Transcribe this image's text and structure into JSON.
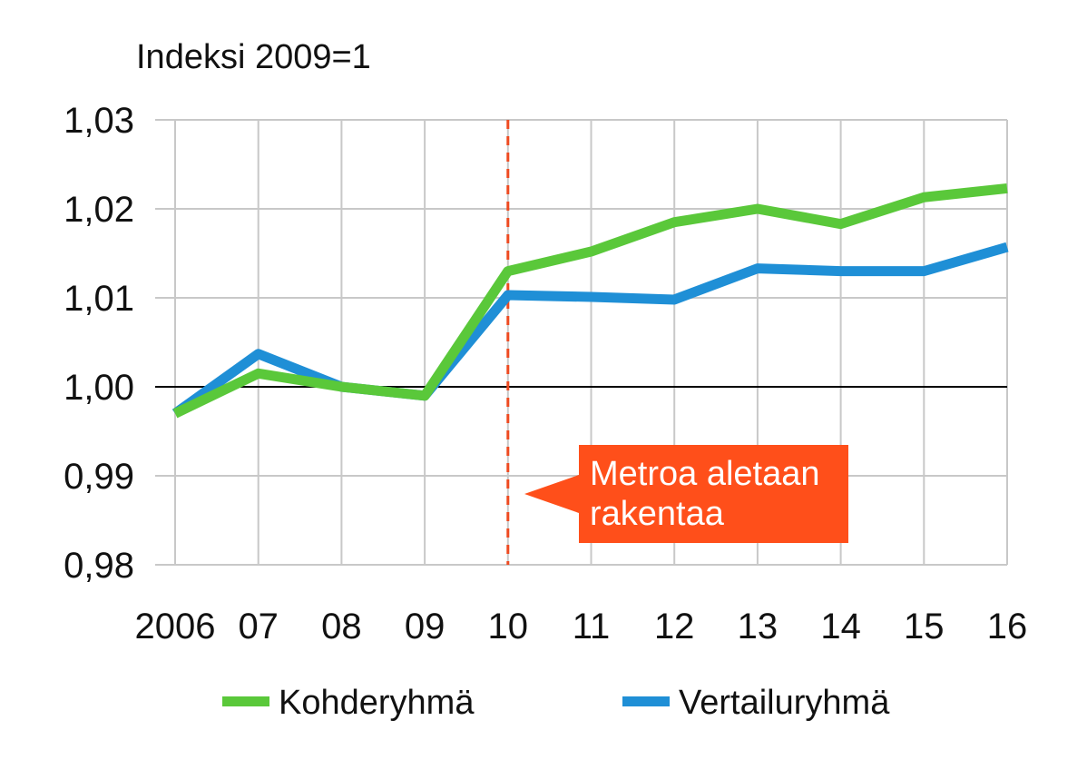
{
  "chart_data": {
    "type": "line",
    "title": "",
    "ylabel": "Indeksi 2009=1",
    "xlabel": "",
    "categories": [
      "2006",
      "07",
      "08",
      "09",
      "10",
      "11",
      "12",
      "13",
      "14",
      "15",
      "16"
    ],
    "ylim": [
      0.98,
      1.03
    ],
    "yticks": [
      0.98,
      0.99,
      1.0,
      1.01,
      1.02,
      1.03
    ],
    "ytick_labels": [
      "0,98",
      "0,99",
      "1,00",
      "1,01",
      "1,02",
      "1,03"
    ],
    "reference_line": 1.0,
    "grid": true,
    "series": [
      {
        "name": "Kohderyhmä",
        "color": "#5ac83a",
        "values": [
          0.997,
          1.0015,
          1.0,
          0.999,
          1.013,
          1.0152,
          1.0185,
          1.02,
          1.0183,
          1.0213,
          1.0223
        ]
      },
      {
        "name": "Vertailuryhmä",
        "color": "#1f8fd6",
        "values": [
          0.997,
          1.0037,
          1.0,
          0.999,
          1.0103,
          1.0101,
          1.0098,
          1.0133,
          1.013,
          1.013,
          1.0157
        ]
      }
    ],
    "annotation": {
      "category": "10",
      "line_color": "#ee4a20",
      "box_color": "#ff4f1a",
      "lines": [
        "Metroa aletaan",
        "rakentaa"
      ]
    },
    "legend_position": "bottom"
  }
}
